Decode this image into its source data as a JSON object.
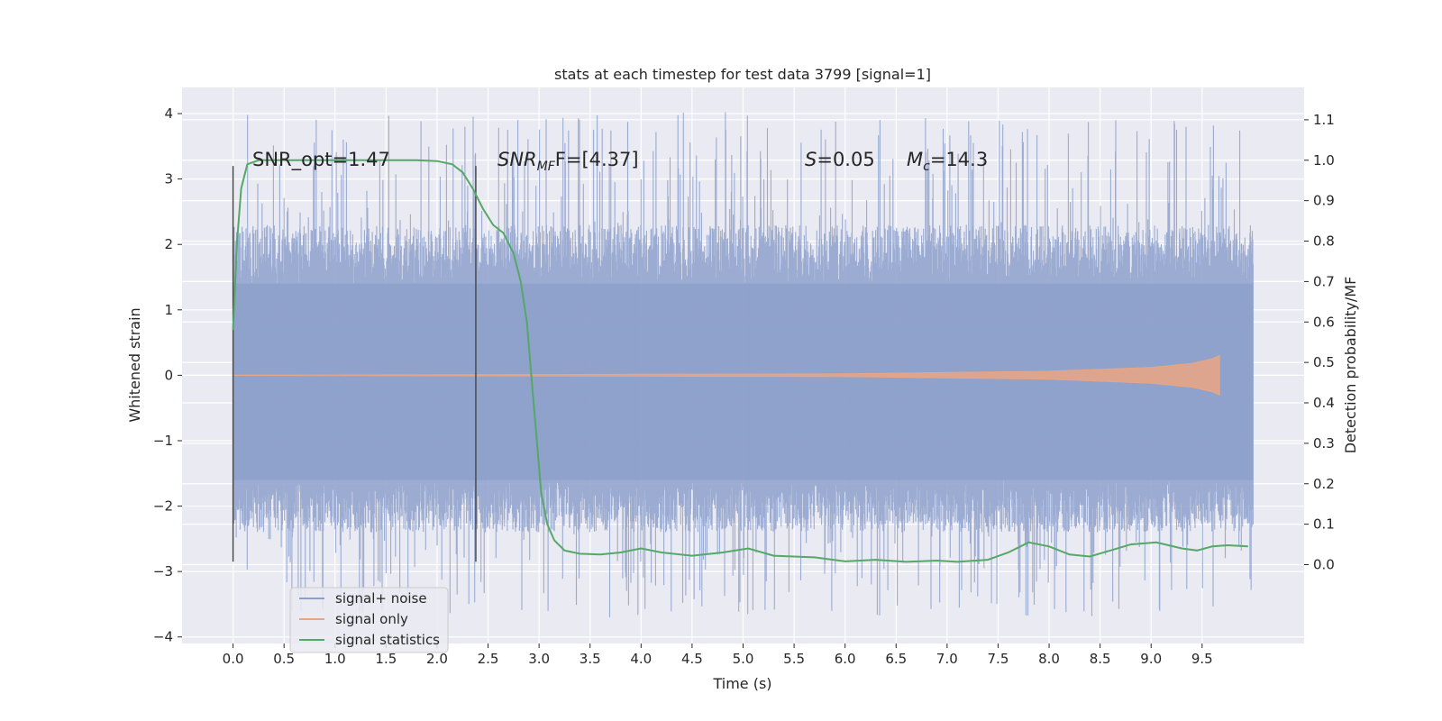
{
  "chart_data": {
    "type": "line",
    "title": "stats at each timestep for test data 3799 [signal=1]",
    "xlabel": "Time (s)",
    "ylabel_left": "Whitened strain",
    "ylabel_right": "Detection probability/MF",
    "xlim": [
      -0.5,
      10.5
    ],
    "ylim_left": [
      -4.1,
      4.4
    ],
    "ylim_right": [
      -0.195,
      1.18
    ],
    "x_ticks": [
      "0.0",
      "0.5",
      "1.0",
      "1.5",
      "2.0",
      "2.5",
      "3.0",
      "3.5",
      "4.0",
      "4.5",
      "5.0",
      "5.5",
      "6.0",
      "6.5",
      "7.0",
      "7.5",
      "8.0",
      "8.5",
      "9.0",
      "9.5"
    ],
    "y_ticks_left": [
      "4",
      "3",
      "2",
      "1",
      "0",
      "−1",
      "−2",
      "−3",
      "−4"
    ],
    "y_ticks_right": [
      "1.1",
      "1.0",
      "0.9",
      "0.8",
      "0.7",
      "0.6",
      "0.5",
      "0.4",
      "0.3",
      "0.2",
      "0.1",
      "0.0"
    ],
    "grid": true,
    "legend_position": "bottom-left",
    "legend": [
      "signal+ noise",
      "signal only",
      "signal statistics"
    ],
    "annotations": {
      "snr_opt": "SNR_opt=1.47",
      "snr_mf_main": "SNR",
      "snr_mf_sub": "MF",
      "snr_mf_rest": "F=[4.37]",
      "s_main": "S",
      "s_rest": "=0.05",
      "mc_main": "M",
      "mc_sub": "c",
      "mc_rest": "=14.3"
    },
    "vertical_markers": [
      {
        "x": 0.0,
        "y_range": [
          -2.85,
          3.2
        ]
      },
      {
        "x": 2.38,
        "y_range": [
          -2.85,
          3.2
        ]
      }
    ],
    "series": [
      {
        "name": "signal+ noise",
        "axis": "left",
        "color": "#8da0cb",
        "x_range": [
          0.0,
          10.0
        ],
        "core_band": [
          -1.6,
          1.4
        ],
        "peak_range": [
          -3.7,
          4.05
        ]
      },
      {
        "name": "signal only",
        "axis": "left",
        "color": "#e5a586",
        "x_range": [
          0.0,
          9.67
        ],
        "points": [
          [
            0.0,
            0.0
          ],
          [
            6.0,
            0.02
          ],
          [
            8.0,
            0.06
          ],
          [
            9.0,
            0.12
          ],
          [
            9.4,
            0.18
          ],
          [
            9.6,
            0.25
          ],
          [
            9.67,
            0.3
          ]
        ]
      },
      {
        "name": "signal statistics",
        "axis": "right",
        "color": "#55a868",
        "points": [
          [
            0.0,
            0.58
          ],
          [
            0.04,
            0.8
          ],
          [
            0.08,
            0.93
          ],
          [
            0.14,
            0.99
          ],
          [
            0.25,
            1.0
          ],
          [
            0.5,
            1.0
          ],
          [
            1.0,
            1.0
          ],
          [
            1.5,
            1.0
          ],
          [
            1.8,
            1.0
          ],
          [
            2.0,
            0.998
          ],
          [
            2.15,
            0.99
          ],
          [
            2.25,
            0.97
          ],
          [
            2.35,
            0.93
          ],
          [
            2.45,
            0.88
          ],
          [
            2.55,
            0.84
          ],
          [
            2.65,
            0.82
          ],
          [
            2.75,
            0.77
          ],
          [
            2.82,
            0.7
          ],
          [
            2.88,
            0.6
          ],
          [
            2.93,
            0.45
          ],
          [
            2.98,
            0.3
          ],
          [
            3.02,
            0.18
          ],
          [
            3.08,
            0.1
          ],
          [
            3.15,
            0.06
          ],
          [
            3.25,
            0.035
          ],
          [
            3.4,
            0.027
          ],
          [
            3.6,
            0.025
          ],
          [
            3.8,
            0.03
          ],
          [
            4.0,
            0.04
          ],
          [
            4.2,
            0.03
          ],
          [
            4.5,
            0.022
          ],
          [
            4.8,
            0.03
          ],
          [
            5.05,
            0.04
          ],
          [
            5.3,
            0.022
          ],
          [
            5.7,
            0.018
          ],
          [
            6.0,
            0.008
          ],
          [
            6.3,
            0.012
          ],
          [
            6.6,
            0.007
          ],
          [
            6.9,
            0.01
          ],
          [
            7.1,
            0.007
          ],
          [
            7.4,
            0.012
          ],
          [
            7.6,
            0.03
          ],
          [
            7.8,
            0.055
          ],
          [
            8.0,
            0.045
          ],
          [
            8.2,
            0.025
          ],
          [
            8.4,
            0.02
          ],
          [
            8.6,
            0.035
          ],
          [
            8.8,
            0.05
          ],
          [
            9.05,
            0.055
          ],
          [
            9.3,
            0.04
          ],
          [
            9.45,
            0.035
          ],
          [
            9.6,
            0.045
          ],
          [
            9.75,
            0.048
          ],
          [
            9.95,
            0.045
          ]
        ]
      }
    ]
  }
}
